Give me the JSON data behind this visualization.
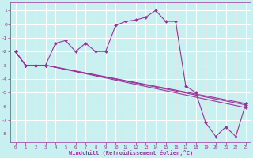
{
  "xlabel": "Windchill (Refroidissement éolien,°C)",
  "bg_color": "#c8f0f0",
  "grid_color": "#ffffff",
  "line_color": "#993399",
  "xlim": [
    -0.5,
    23.5
  ],
  "ylim": [
    -8.6,
    1.6
  ],
  "xticks": [
    0,
    1,
    2,
    3,
    4,
    5,
    6,
    7,
    8,
    9,
    10,
    11,
    12,
    13,
    14,
    15,
    16,
    17,
    18,
    19,
    20,
    21,
    22,
    23
  ],
  "yticks": [
    1,
    0,
    -1,
    -2,
    -3,
    -4,
    -5,
    -6,
    -7,
    -8
  ],
  "lines": [
    {
      "x": [
        0,
        1,
        2,
        3,
        4,
        5,
        6,
        7,
        8,
        9,
        10,
        11,
        12,
        13,
        14,
        15,
        16,
        17,
        18,
        19,
        20,
        21,
        22,
        23
      ],
      "y": [
        -2,
        -3,
        -3,
        -3,
        -1.4,
        -1.2,
        -2.0,
        -1.4,
        -2.0,
        -2.0,
        -0.1,
        0.2,
        0.3,
        0.5,
        1.0,
        0.2,
        0.2,
        -4.5,
        -5.0,
        -7.2,
        -8.2,
        -7.5,
        -8.2,
        -5.8
      ]
    },
    {
      "x": [
        0,
        1,
        2,
        3,
        23
      ],
      "y": [
        -2,
        -3,
        -3,
        -3,
        -5.8
      ]
    },
    {
      "x": [
        0,
        1,
        2,
        3,
        23
      ],
      "y": [
        -2,
        -3,
        -3,
        -3,
        -5.9
      ]
    },
    {
      "x": [
        0,
        1,
        2,
        3,
        23
      ],
      "y": [
        -2,
        -3,
        -3,
        -3,
        -6.1
      ]
    }
  ],
  "marker": "D",
  "markersize": 2.0,
  "linewidth": 0.8
}
